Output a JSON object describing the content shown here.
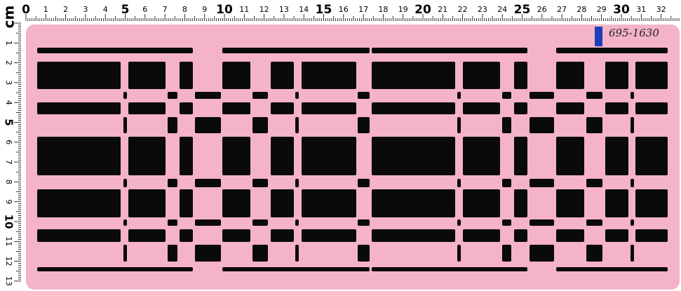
{
  "ruler": {
    "unit": "cm",
    "top": [
      "0",
      "1",
      "2",
      "3",
      "4",
      "5",
      "6",
      "7",
      "8",
      "9",
      "10",
      "11",
      "12",
      "13",
      "14",
      "15",
      "16",
      "17",
      "18",
      "19",
      "20",
      "21",
      "22",
      "23",
      "24",
      "25",
      "26",
      "27",
      "28",
      "29",
      "30",
      "31",
      "32"
    ],
    "left": [
      "1",
      "2",
      "3",
      "4",
      "5",
      "6",
      "7",
      "8",
      "9",
      "10",
      "11",
      "12",
      "13"
    ]
  },
  "label": "695-1630"
}
